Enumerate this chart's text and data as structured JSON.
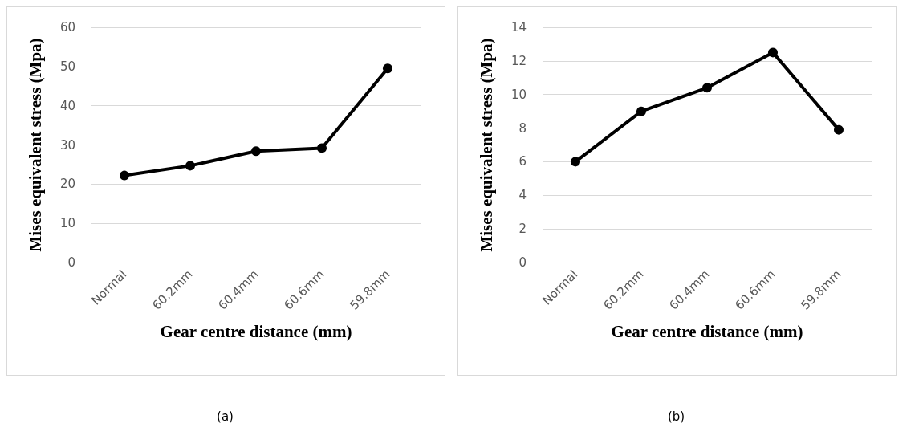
{
  "chart_data": [
    {
      "type": "line",
      "xlabel": "Gear centre distance (mm)",
      "ylabel": "Mises equivalent stress (Mpa)",
      "categories": [
        "Normal",
        "60.2mm",
        "60.4mm",
        "60.6mm",
        "59.8mm"
      ],
      "series": [
        {
          "color": "#000000",
          "values": [
            22.2,
            24.7,
            28.4,
            29.2,
            49.5
          ]
        }
      ],
      "ylim": [
        0,
        60
      ],
      "yticks": [
        0,
        10,
        20,
        30,
        40,
        50,
        60
      ],
      "grid": "y",
      "marker": "circle",
      "line_style": "solid",
      "annotations": [
        "(a)"
      ]
    },
    {
      "type": "line",
      "xlabel": "Gear centre distance (mm)",
      "ylabel": "Mises equivalent stress (Mpa)",
      "categories": [
        "Normal",
        "60.2mm",
        "60.4mm",
        "60.6mm",
        "59.8mm"
      ],
      "series": [
        {
          "color": "#000000",
          "values": [
            6.0,
            9.0,
            10.4,
            12.5,
            7.9
          ]
        }
      ],
      "ylim": [
        0,
        14
      ],
      "yticks": [
        0,
        2,
        4,
        6,
        8,
        10,
        12,
        14
      ],
      "grid": "y",
      "marker": "circle",
      "line_style": "solid",
      "annotations": [
        "(b)"
      ]
    }
  ]
}
